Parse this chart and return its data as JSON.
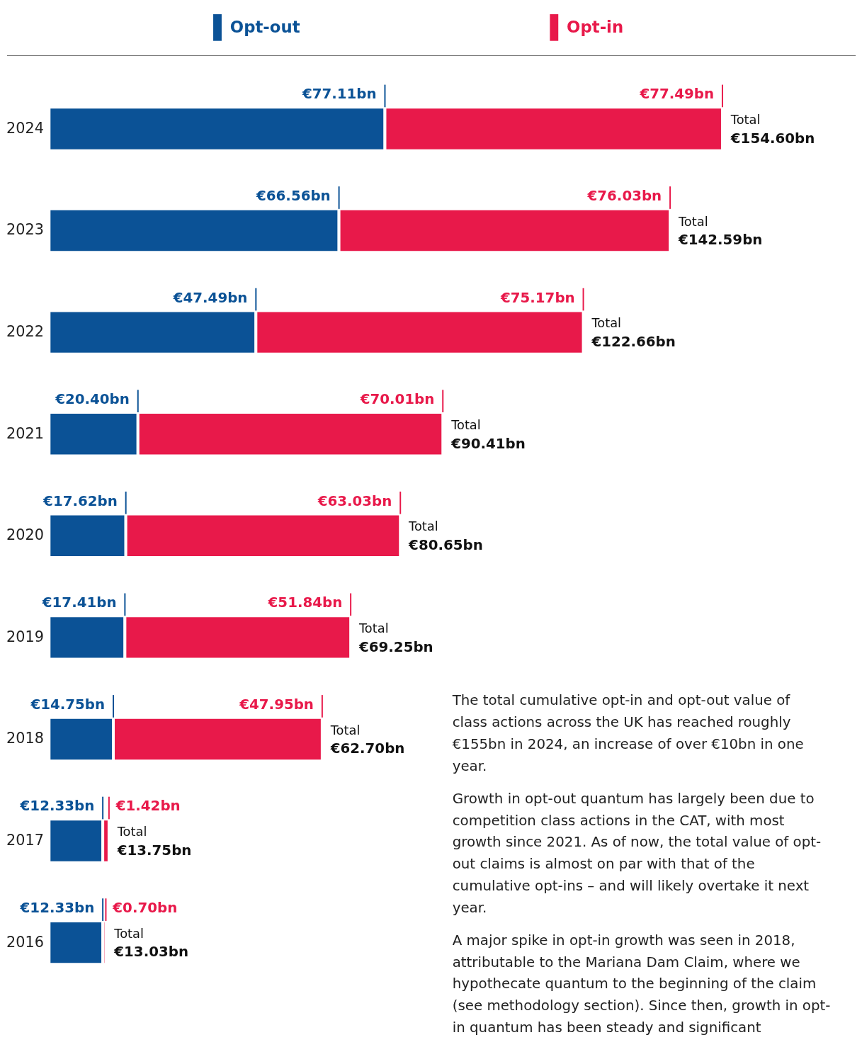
{
  "chart_data": {
    "type": "bar",
    "orientation": "horizontal",
    "stacked": true,
    "legend": "top",
    "tick_labels": "y",
    "categories": [
      "2024",
      "2023",
      "2022",
      "2021",
      "2020",
      "2019",
      "2018",
      "2017",
      "2016"
    ],
    "series": [
      {
        "name": "Opt-out",
        "color": "#0b5296",
        "values": [
          77.11,
          66.56,
          47.49,
          20.4,
          17.62,
          17.41,
          14.75,
          12.33,
          12.33
        ],
        "value_labels": [
          "€77.11bn",
          "€66.56bn",
          "€47.49bn",
          "€20.40bn",
          "€17.62bn",
          "€17.41bn",
          "€14.75bn",
          "€12.33bn",
          "€12.33bn"
        ]
      },
      {
        "name": "Opt-in",
        "color": "#e8194a",
        "values": [
          77.49,
          76.03,
          75.17,
          70.01,
          63.03,
          51.84,
          47.95,
          1.42,
          0.7
        ],
        "value_labels": [
          "€77.49bn",
          "€76.03bn",
          "€75.17bn",
          "€70.01bn",
          "€63.03bn",
          "€51.84bn",
          "€47.95bn",
          "€1.42bn",
          "€0.70bn"
        ]
      }
    ],
    "totals": [
      "Total\n€154.60bn",
      "Total\n€142.59bn",
      "Total\n€122.66bn",
      "Total\n€90.41bn",
      "Total\n€80.65bn",
      "Total\n€69.25bn",
      "Total\n€62.70bn",
      "Total\n€13.75bn",
      "Total\n€13.03bn"
    ],
    "annotations": [
      "The total cumulative opt-in and opt-out value of class actions across the UK has reached roughly €155bn in 2024, an increase of over €10bn in one year.",
      "Growth in opt-out quantum has largely been due to competition class actions in the CAT, with most growth since 2021. As of now, the total value of opt-out claims is almost on par with that of the cumulative opt-ins – and will likely overtake it next year.",
      "A major spike in opt-in growth was seen in 2018, attributable to the Mariana Dam Claim, where we hypothecate quantum to the beginning of the claim (see methodology section). Since then, growth in opt-in quantum has been steady and significant"
    ]
  }
}
